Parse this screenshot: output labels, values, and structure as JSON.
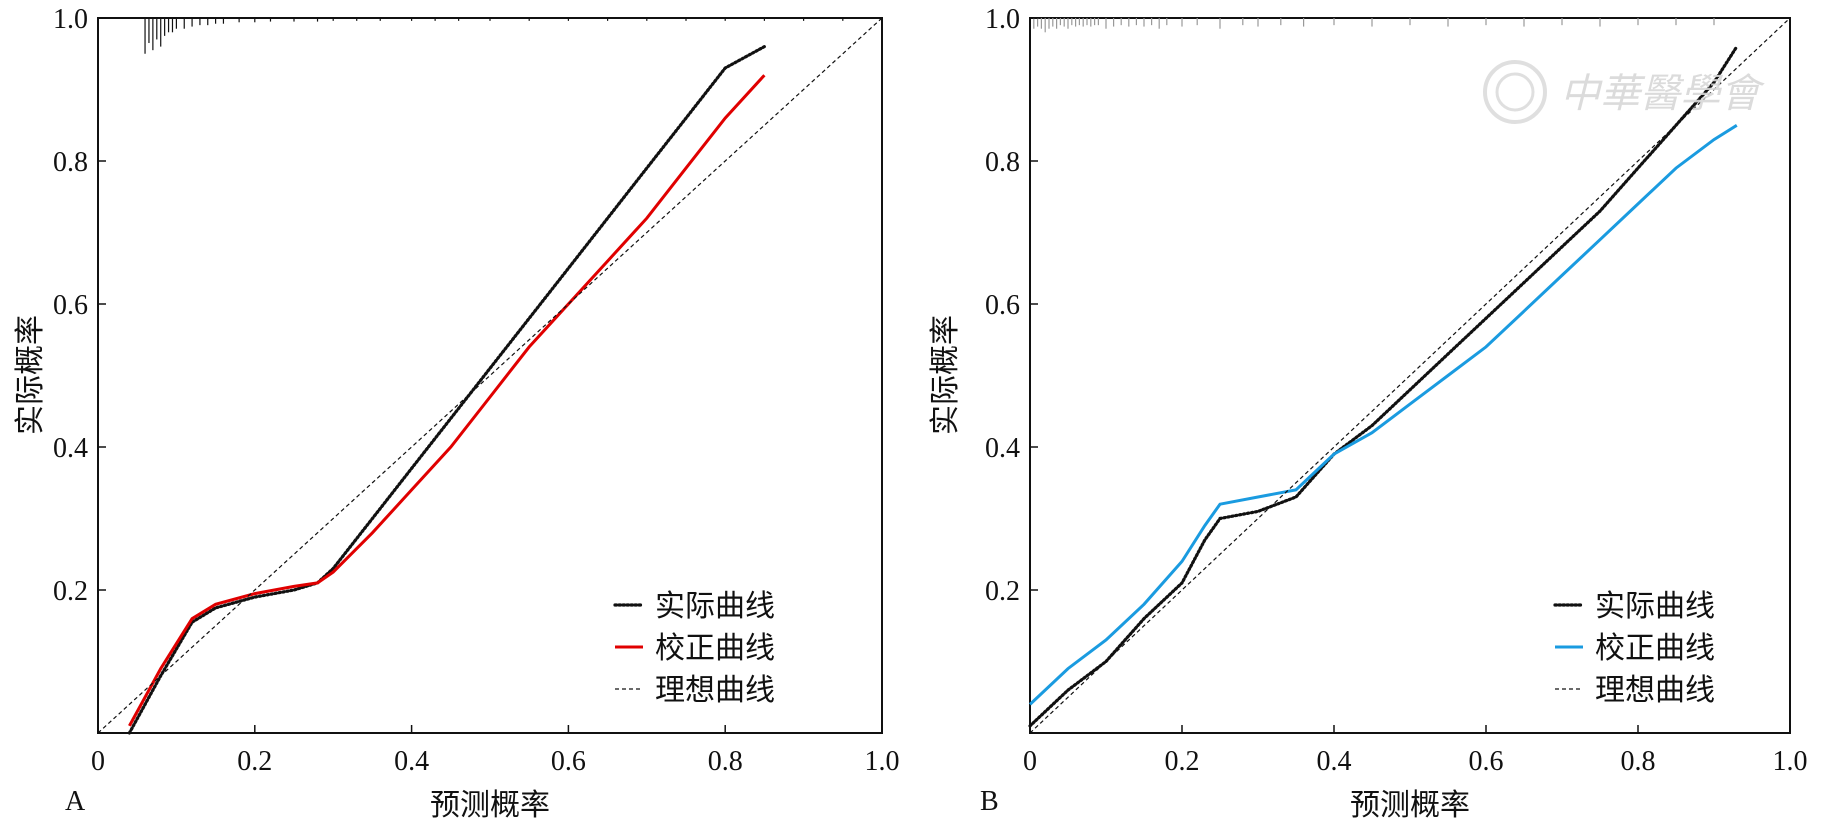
{
  "chart_data": [
    {
      "type": "line",
      "panel_label": "A",
      "xlabel": "预测概率",
      "ylabel": "实际概率",
      "xlim": [
        0,
        1.0
      ],
      "ylim": [
        0,
        1.0
      ],
      "x_ticks": [
        "0",
        "0.2",
        "0.4",
        "0.6",
        "0.8",
        "1.0"
      ],
      "y_ticks": [
        "0.2",
        "0.4",
        "0.6",
        "0.8",
        "1.0"
      ],
      "legend_position": "bottom-right",
      "series": [
        {
          "name": "实际曲线",
          "style": "dotted",
          "color": "#111111",
          "x": [
            0.04,
            0.08,
            0.12,
            0.15,
            0.2,
            0.25,
            0.28,
            0.3,
            0.35,
            0.4,
            0.45,
            0.5,
            0.55,
            0.6,
            0.65,
            0.7,
            0.75,
            0.8,
            0.85
          ],
          "y": [
            0.0,
            0.08,
            0.155,
            0.175,
            0.19,
            0.2,
            0.21,
            0.23,
            0.3,
            0.37,
            0.44,
            0.51,
            0.58,
            0.65,
            0.72,
            0.79,
            0.86,
            0.93,
            0.96
          ]
        },
        {
          "name": "校正曲线",
          "style": "solid",
          "color": "#e00000",
          "x": [
            0.04,
            0.08,
            0.12,
            0.15,
            0.2,
            0.25,
            0.28,
            0.3,
            0.35,
            0.4,
            0.45,
            0.5,
            0.55,
            0.6,
            0.65,
            0.7,
            0.75,
            0.8,
            0.85
          ],
          "y": [
            0.01,
            0.09,
            0.16,
            0.18,
            0.195,
            0.205,
            0.21,
            0.225,
            0.28,
            0.34,
            0.4,
            0.47,
            0.54,
            0.6,
            0.66,
            0.72,
            0.79,
            0.86,
            0.92
          ]
        },
        {
          "name": "理想曲线",
          "style": "dashed",
          "color": "#111111",
          "x": [
            0,
            1.0
          ],
          "y": [
            0,
            1.0
          ]
        }
      ],
      "rug": [
        0.06,
        0.065,
        0.07,
        0.075,
        0.08,
        0.085,
        0.09,
        0.095,
        0.1,
        0.11,
        0.12,
        0.13,
        0.14,
        0.15,
        0.16,
        0.18,
        0.2,
        0.22,
        0.25,
        0.28,
        0.3,
        0.33,
        0.36,
        0.4,
        0.43,
        0.46,
        0.5,
        0.55,
        0.6,
        0.65,
        0.7,
        0.75,
        0.8,
        0.85,
        0.9,
        0.95
      ],
      "rug_lengths": [
        0.05,
        0.035,
        0.045,
        0.03,
        0.04,
        0.025,
        0.02,
        0.02,
        0.015,
        0.015,
        0.012,
        0.01,
        0.01,
        0.008,
        0.008,
        0.006,
        0.006,
        0.005,
        0.005,
        0.005,
        0.004,
        0.004,
        0.004,
        0.004,
        0.004,
        0.004,
        0.004,
        0.004,
        0.004,
        0.004,
        0.004,
        0.004,
        0.004,
        0.004,
        0.004,
        0.004
      ],
      "rug_color": "#111111"
    },
    {
      "type": "line",
      "panel_label": "B",
      "xlabel": "预测概率",
      "ylabel": "实际概率",
      "xlim": [
        0,
        1.0
      ],
      "ylim": [
        0,
        1.0
      ],
      "x_ticks": [
        "0",
        "0.2",
        "0.4",
        "0.6",
        "0.8",
        "1.0"
      ],
      "y_ticks": [
        "0.2",
        "0.4",
        "0.6",
        "0.8",
        "1.0"
      ],
      "legend_position": "bottom-right",
      "series": [
        {
          "name": "实际曲线",
          "style": "dotted",
          "color": "#111111",
          "x": [
            0.0,
            0.05,
            0.1,
            0.15,
            0.2,
            0.23,
            0.25,
            0.3,
            0.35,
            0.4,
            0.45,
            0.5,
            0.55,
            0.6,
            0.65,
            0.7,
            0.75,
            0.8,
            0.85,
            0.9,
            0.93
          ],
          "y": [
            0.01,
            0.06,
            0.1,
            0.16,
            0.21,
            0.27,
            0.3,
            0.31,
            0.33,
            0.39,
            0.43,
            0.48,
            0.53,
            0.58,
            0.63,
            0.68,
            0.73,
            0.79,
            0.85,
            0.91,
            0.96
          ]
        },
        {
          "name": "校正曲线",
          "style": "solid",
          "color": "#1a9be0",
          "x": [
            0.0,
            0.05,
            0.1,
            0.15,
            0.2,
            0.23,
            0.25,
            0.3,
            0.35,
            0.4,
            0.45,
            0.5,
            0.55,
            0.6,
            0.65,
            0.7,
            0.75,
            0.8,
            0.85,
            0.9,
            0.93
          ],
          "y": [
            0.04,
            0.09,
            0.13,
            0.18,
            0.24,
            0.29,
            0.32,
            0.33,
            0.34,
            0.39,
            0.42,
            0.46,
            0.5,
            0.54,
            0.59,
            0.64,
            0.69,
            0.74,
            0.79,
            0.83,
            0.85
          ]
        },
        {
          "name": "理想曲线",
          "style": "dashed",
          "color": "#111111",
          "x": [
            0,
            1.0
          ],
          "y": [
            0,
            1.0
          ]
        }
      ],
      "rug": [
        0.005,
        0.01,
        0.015,
        0.02,
        0.025,
        0.03,
        0.035,
        0.04,
        0.045,
        0.05,
        0.055,
        0.06,
        0.065,
        0.07,
        0.075,
        0.08,
        0.085,
        0.09,
        0.1,
        0.11,
        0.12,
        0.13,
        0.14,
        0.15,
        0.16,
        0.17,
        0.18,
        0.2,
        0.22,
        0.25,
        0.28,
        0.3,
        0.33,
        0.36,
        0.4,
        0.45,
        0.5,
        0.55,
        0.6,
        0.65,
        0.7,
        0.75,
        0.8,
        0.85,
        0.9
      ],
      "rug_lengths": [
        0.015,
        0.012,
        0.015,
        0.02,
        0.015,
        0.012,
        0.015,
        0.01,
        0.012,
        0.015,
        0.01,
        0.012,
        0.01,
        0.012,
        0.01,
        0.012,
        0.01,
        0.01,
        0.015,
        0.012,
        0.01,
        0.012,
        0.01,
        0.012,
        0.01,
        0.015,
        0.01,
        0.012,
        0.01,
        0.015,
        0.01,
        0.012,
        0.01,
        0.012,
        0.01,
        0.012,
        0.01,
        0.012,
        0.01,
        0.012,
        0.01,
        0.012,
        0.01,
        0.01,
        0.01
      ],
      "rug_color": "#999999"
    }
  ],
  "watermark": {
    "text": "中華醫學會",
    "color": "#d8d8d8"
  }
}
